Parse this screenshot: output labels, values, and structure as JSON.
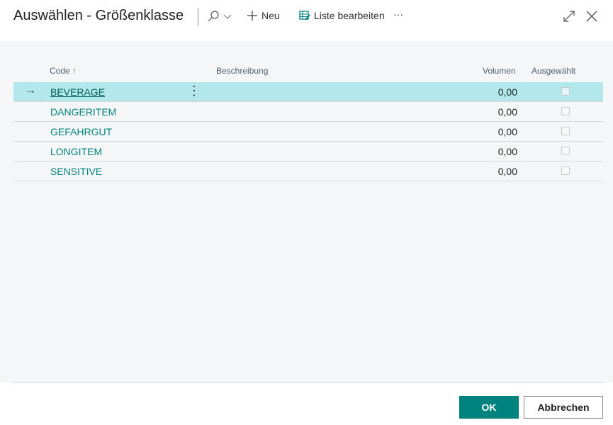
{
  "header": {
    "title": "Auswählen - Größenklasse",
    "new_label": "Neu",
    "edit_list_label": "Liste bearbeiten",
    "more_label": "···"
  },
  "columns": {
    "code": "Code",
    "code_sort": "↑",
    "description": "Beschreibung",
    "volume": "Volumen",
    "selected": "Ausgewählt"
  },
  "rows": [
    {
      "code": "BEVERAGE",
      "description": "",
      "volume": "0,00",
      "selected": false
    },
    {
      "code": "DANGERITEM",
      "description": "",
      "volume": "0,00",
      "selected": false
    },
    {
      "code": "GEFAHRGUT",
      "description": "",
      "volume": "0,00",
      "selected": false
    },
    {
      "code": "LONGITEM",
      "description": "",
      "volume": "0,00",
      "selected": false
    },
    {
      "code": "SENSITIVE",
      "description": "",
      "volume": "0,00",
      "selected": false
    }
  ],
  "footer": {
    "ok_label": "OK",
    "cancel_label": "Abbrechen"
  },
  "colors": {
    "accent": "#00827f",
    "selected_row": "#b2e8ec"
  }
}
